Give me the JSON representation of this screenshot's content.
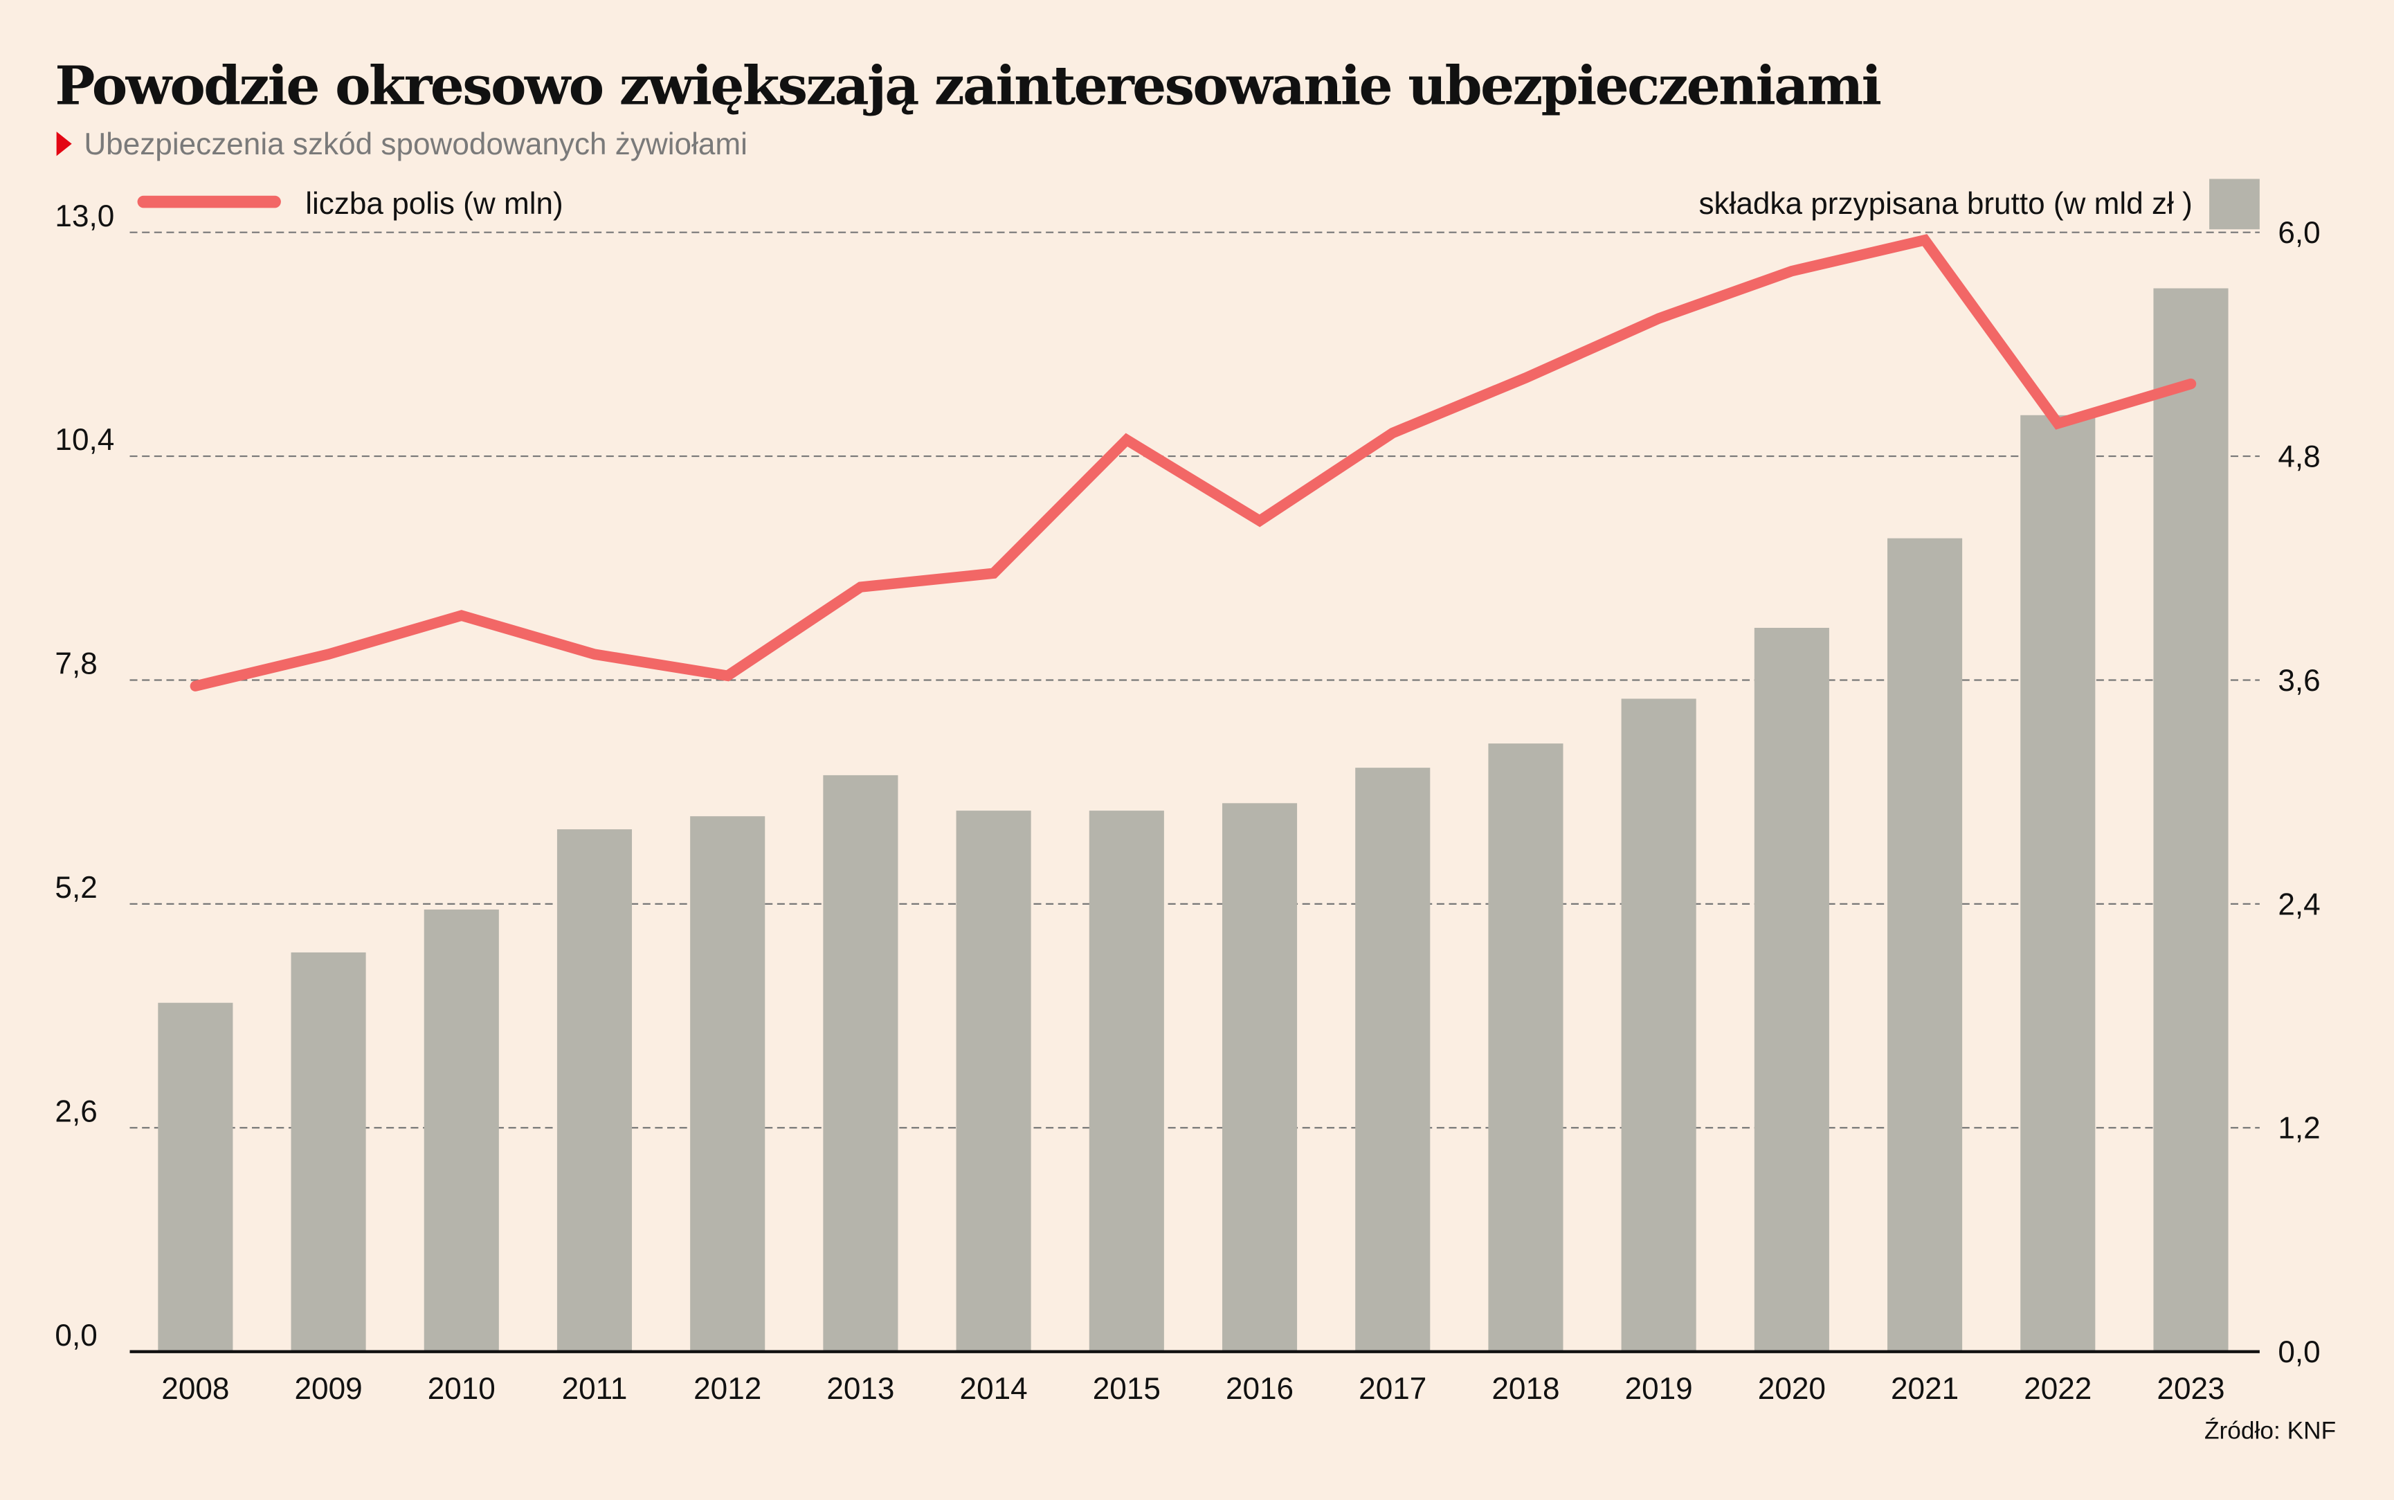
{
  "chart_data": {
    "type": "bar+line",
    "title": "Powodzie okresowo zwiększają zainteresowanie ubezpieczeniami",
    "subtitle": "Ubezpieczenia szkód spowodowanych żywiołami",
    "source": "Źródło: KNF",
    "categories": [
      "2008",
      "2009",
      "2010",
      "2011",
      "2012",
      "2013",
      "2014",
      "2015",
      "2016",
      "2017",
      "2018",
      "2019",
      "2020",
      "2021",
      "2022",
      "2023"
    ],
    "series": [
      {
        "name": "liczba polis (w mln)",
        "type": "line",
        "axis": "left",
        "color": "#f26766",
        "values": [
          7.73,
          8.1,
          8.55,
          8.1,
          7.85,
          8.88,
          9.04,
          10.59,
          9.65,
          10.67,
          11.31,
          12.0,
          12.55,
          12.91,
          10.78,
          11.24
        ]
      },
      {
        "name": "składka przypisana brutto (w mld zł )",
        "type": "bar",
        "axis": "right",
        "color": "#b5b4ab",
        "values": [
          1.87,
          2.14,
          2.37,
          2.8,
          2.87,
          3.09,
          2.9,
          2.9,
          2.94,
          3.13,
          3.26,
          3.5,
          3.88,
          4.36,
          5.02,
          5.7
        ]
      }
    ],
    "left_axis": {
      "ylim": [
        0,
        13
      ],
      "ticks": [
        "0,0",
        "2,6",
        "5,2",
        "7,8",
        "10,4",
        "13,0"
      ]
    },
    "right_axis": {
      "ylim": [
        0,
        6
      ],
      "ticks": [
        "0,0",
        "1,2",
        "2,4",
        "3,6",
        "4,8",
        "6,0"
      ]
    },
    "grid": true,
    "legend": {
      "line_position": "top-left",
      "bar_position": "top-right"
    },
    "accent_color": "#e30613"
  }
}
